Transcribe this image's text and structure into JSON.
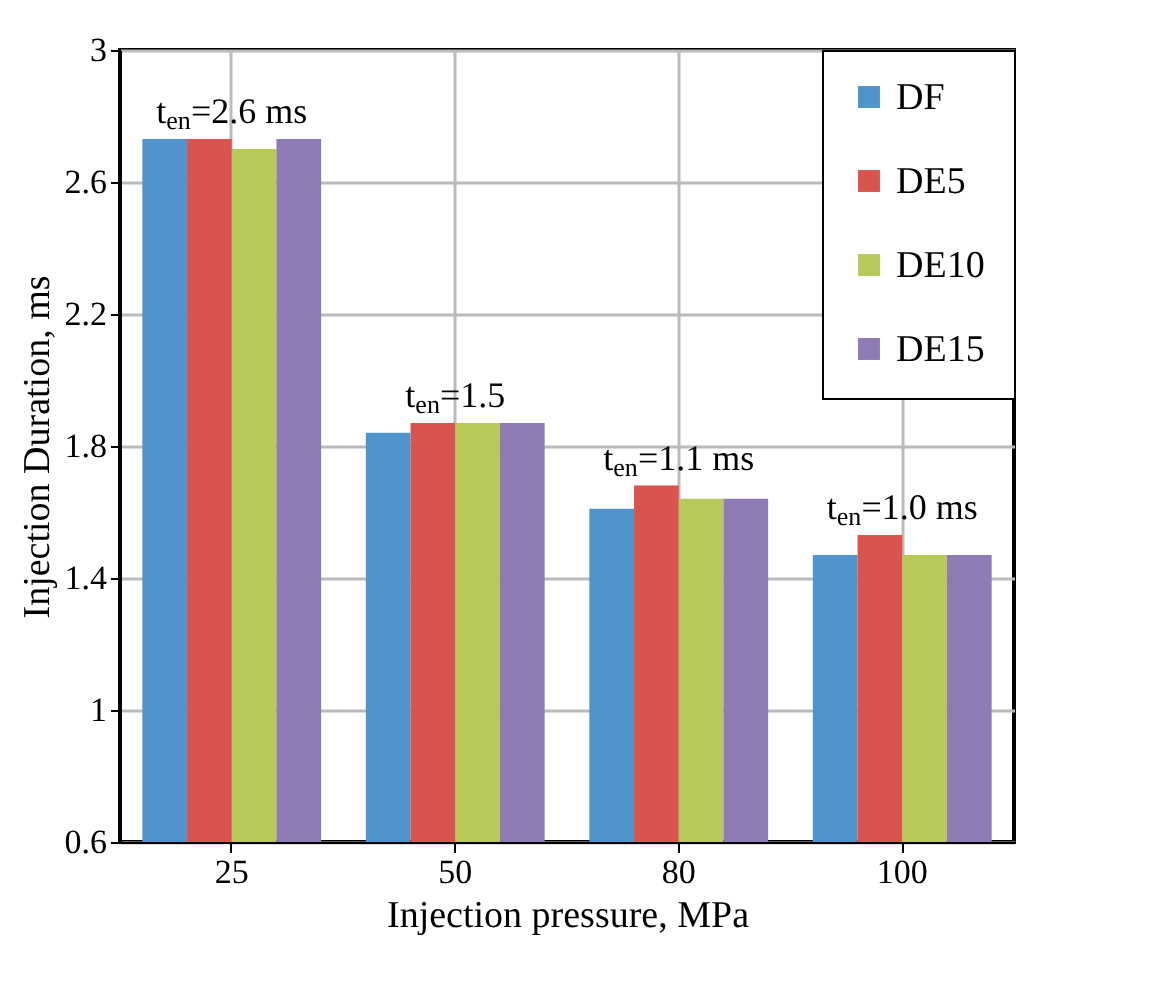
{
  "chart_data": {
    "type": "bar",
    "xlabel": "Injection pressure, MPa",
    "ylabel": "Injection Duration, ms",
    "categories": [
      "25",
      "50",
      "80",
      "100"
    ],
    "series": [
      {
        "name": "DF",
        "color": "#4f94cd",
        "values": [
          2.73,
          1.84,
          1.61,
          1.47
        ]
      },
      {
        "name": "DE5",
        "color": "#d9534f",
        "values": [
          2.73,
          1.87,
          1.68,
          1.53
        ]
      },
      {
        "name": "DE10",
        "color": "#b8c95a",
        "values": [
          2.7,
          1.87,
          1.64,
          1.47
        ]
      },
      {
        "name": "DE15",
        "color": "#8e7bb5",
        "values": [
          2.73,
          1.87,
          1.64,
          1.47
        ]
      }
    ],
    "ylim": [
      0.6,
      3
    ],
    "yticks": [
      0.6,
      1,
      1.4,
      1.8,
      2.2,
      2.6,
      3
    ],
    "grid": true,
    "legend": "top right",
    "annotations": [
      "t$_{en}$=2.6 ms",
      "t$_{en}$=1.5",
      "t$_{en}$=1.1 ms",
      "t$_{en}$=1.0 ms"
    ]
  }
}
